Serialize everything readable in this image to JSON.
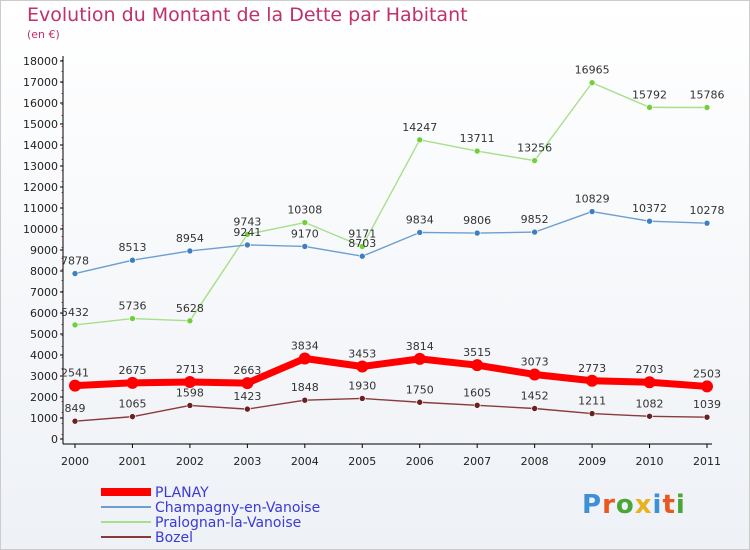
{
  "title": "Evolution du Montant de la Dette par Habitant",
  "subtitle": "(en €)",
  "logo": {
    "text": "Proxiti",
    "colors": [
      "#3d8fd6",
      "#e8581f",
      "#4aa63a",
      "#e8b21f",
      "#3d8fd6",
      "#e8581f",
      "#4aa63a"
    ]
  },
  "chart_data": {
    "type": "line",
    "title": "Evolution du Montant de la Dette par Habitant",
    "ylabel": "(en €)",
    "xlabel": "",
    "ylim": [
      0,
      18000
    ],
    "yticks": [
      0,
      1000,
      2000,
      3000,
      4000,
      5000,
      6000,
      7000,
      8000,
      9000,
      10000,
      11000,
      12000,
      13000,
      14000,
      15000,
      16000,
      17000,
      18000
    ],
    "categories": [
      "2000",
      "2001",
      "2002",
      "2003",
      "2004",
      "2005",
      "2006",
      "2007",
      "2008",
      "2009",
      "2010",
      "2011"
    ],
    "grid": false,
    "legend_position": "bottom-left",
    "series": [
      {
        "name": "PLANAY",
        "color": "#ff0000",
        "dotColor": "#ff0000",
        "values": [
          2541,
          2675,
          2713,
          2663,
          3834,
          3453,
          3814,
          3515,
          3073,
          2773,
          2703,
          2503
        ]
      },
      {
        "name": "Champagny-en-Vanoise",
        "color": "#6b9fcf",
        "dotColor": "#3d7fc1",
        "values": [
          7878,
          8513,
          8954,
          9241,
          9170,
          8703,
          9834,
          9806,
          9852,
          10829,
          10372,
          10278
        ]
      },
      {
        "name": "Pralognan-la-Vanoise",
        "color": "#a6e08a",
        "dotColor": "#72cf3c",
        "values": [
          5432,
          5736,
          5628,
          9743,
          10308,
          9171,
          14247,
          13711,
          13256,
          16965,
          15792,
          15786
        ]
      },
      {
        "name": "Bozel",
        "color": "#8a3a3a",
        "dotColor": "#6b1f1f",
        "values": [
          849,
          1065,
          1598,
          1423,
          1848,
          1930,
          1750,
          1605,
          1452,
          1211,
          1082,
          1039
        ]
      }
    ]
  }
}
